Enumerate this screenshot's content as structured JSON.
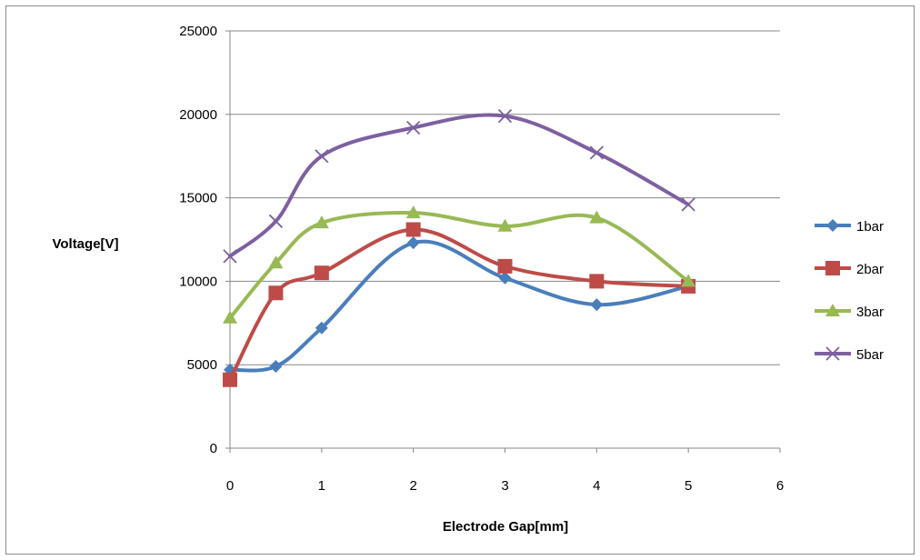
{
  "chart_data": {
    "type": "line",
    "title": "",
    "xlabel": "Electrode Gap[mm]",
    "ylabel": "Voltage[V]",
    "xlim": [
      0,
      6
    ],
    "ylim": [
      0,
      25000
    ],
    "x_ticks": [
      "0",
      "1",
      "2",
      "3",
      "4",
      "5",
      "6"
    ],
    "y_ticks": [
      "0",
      "5000",
      "10000",
      "15000",
      "20000",
      "25000"
    ],
    "grid": "horizontal",
    "legend_position": "right",
    "series": [
      {
        "name": "1bar",
        "color": "#4a7ebb",
        "marker": "diamond",
        "x": [
          0,
          0.5,
          1,
          2,
          3,
          4,
          5
        ],
        "values": [
          4700,
          4900,
          7200,
          12300,
          10200,
          8600,
          9700
        ]
      },
      {
        "name": "2bar",
        "color": "#be4b48",
        "marker": "square",
        "x": [
          0,
          0.5,
          1,
          2,
          3,
          4,
          5
        ],
        "values": [
          4100,
          9300,
          10500,
          13100,
          10900,
          10000,
          9700
        ]
      },
      {
        "name": "3bar",
        "color": "#98b954",
        "marker": "triangle",
        "x": [
          0,
          0.5,
          1,
          2,
          3,
          4,
          5
        ],
        "values": [
          7800,
          11100,
          13500,
          14100,
          13300,
          13800,
          10000
        ]
      },
      {
        "name": "5bar",
        "color": "#7d60a0",
        "marker": "x",
        "x": [
          0,
          0.5,
          1,
          2,
          3,
          4,
          5
        ],
        "values": [
          11500,
          13600,
          17500,
          19200,
          19900,
          17700,
          14600
        ]
      }
    ]
  }
}
